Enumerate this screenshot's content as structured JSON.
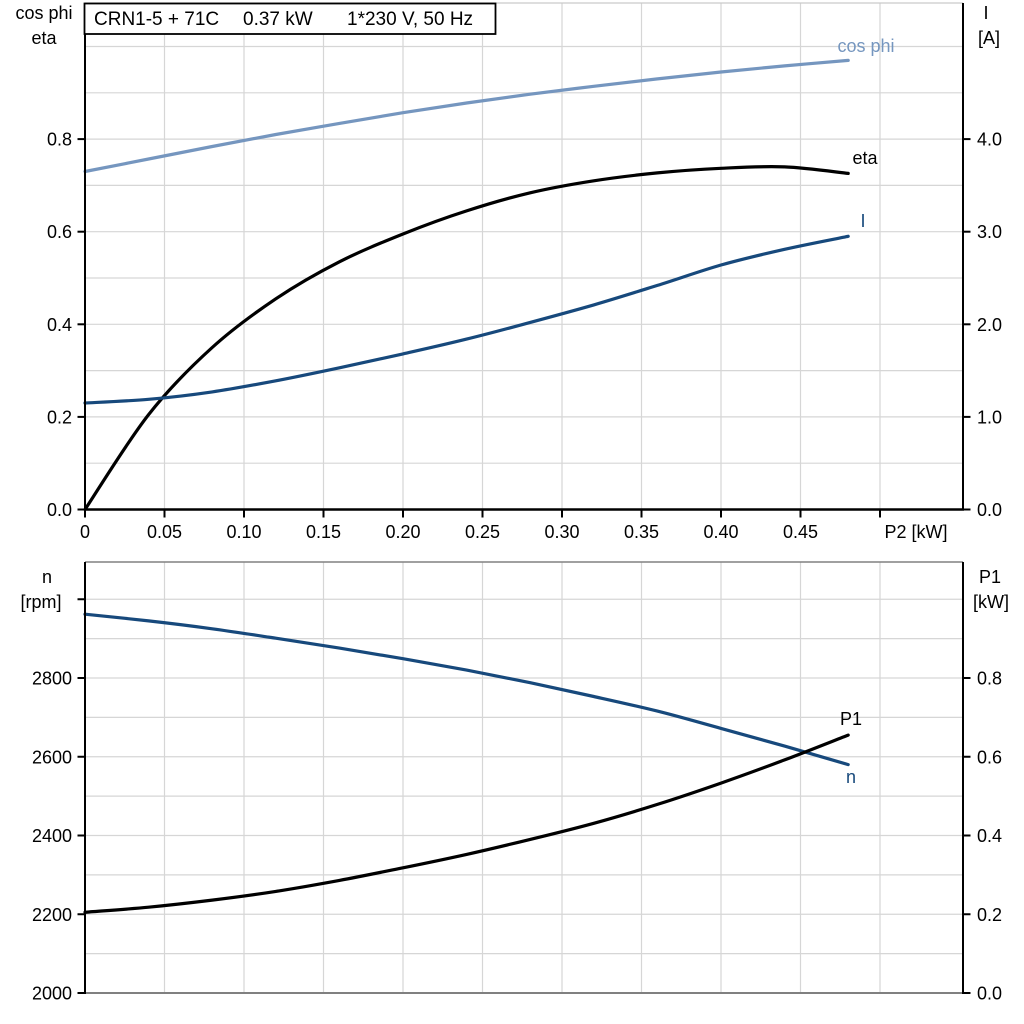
{
  "title_box": {
    "segments": [
      "CRN1-5 + 71C",
      "0.37 kW",
      "1*230 V, 50 Hz"
    ]
  },
  "colors": {
    "curve_dark_blue": "#17497c",
    "curve_light_blue": "#7596bf",
    "curve_black": "#000000",
    "gridline": "#d6d6d6",
    "frame_light": "#c9c9c9",
    "frame_dark": "#808080",
    "axis": "#000000",
    "background": "#ffffff"
  },
  "chart_data": [
    {
      "type": "line",
      "title": "CRN1-5 + 71C 0.37 kW 1*230 V, 50 Hz",
      "xlabel": "P2 [kW]",
      "grid": true,
      "x": [
        0,
        0.04,
        0.08,
        0.12,
        0.16,
        0.2,
        0.24,
        0.28,
        0.32,
        0.36,
        0.4,
        0.44,
        0.48
      ],
      "x_axis": {
        "ticks": [
          0,
          0.05,
          0.1,
          0.15,
          0.2,
          0.25,
          0.3,
          0.35,
          0.4,
          0.45,
          0.5
        ],
        "tick_labels": [
          "0",
          "0.05",
          "0.10",
          "0.15",
          "0.20",
          "0.25",
          "0.30",
          "0.35",
          "0.40",
          "0.45",
          ""
        ],
        "range": [
          0,
          0.552
        ]
      },
      "left_axis": {
        "header": [
          "cos phi",
          "eta"
        ],
        "ticks": [
          0.0,
          0.2,
          0.4,
          0.6,
          0.8
        ],
        "tick_labels": [
          "0.0",
          "0.2",
          "0.4",
          "0.6",
          "0.8"
        ],
        "minor_step": 0.1,
        "range": [
          0,
          1.094
        ]
      },
      "right_axis": {
        "header": [
          "I",
          "[A]"
        ],
        "ticks": [
          0.0,
          1.0,
          2.0,
          3.0,
          4.0
        ],
        "tick_labels": [
          "0.0",
          "1.0",
          "2.0",
          "3.0",
          "4.0"
        ],
        "range": [
          0,
          5.47
        ]
      },
      "series": [
        {
          "name": "cos phi",
          "axis": "left",
          "color": "#7596bf",
          "values": [
            0.73,
            0.757,
            0.784,
            0.81,
            0.834,
            0.857,
            0.878,
            0.897,
            0.914,
            0.93,
            0.945,
            0.958,
            0.97
          ]
        },
        {
          "name": "eta",
          "axis": "left",
          "color": "#000000",
          "values": [
            0.0,
            0.205,
            0.35,
            0.455,
            0.535,
            0.595,
            0.645,
            0.684,
            0.71,
            0.727,
            0.737,
            0.74,
            0.726
          ]
        },
        {
          "name": "I",
          "axis": "right",
          "color": "#17497c",
          "values": [
            1.15,
            1.19,
            1.27,
            1.39,
            1.53,
            1.68,
            1.84,
            2.02,
            2.21,
            2.42,
            2.64,
            2.81,
            2.95
          ]
        }
      ]
    },
    {
      "type": "line",
      "title": "",
      "xlabel": "",
      "grid": true,
      "x": [
        0,
        0.04,
        0.08,
        0.12,
        0.16,
        0.2,
        0.24,
        0.28,
        0.32,
        0.36,
        0.4,
        0.44,
        0.48
      ],
      "x_axis": {
        "ticks": [],
        "tick_labels": [],
        "range": [
          0,
          0.552
        ]
      },
      "left_axis": {
        "header": [
          "n",
          "[rpm]"
        ],
        "ticks": [
          2000,
          2200,
          2400,
          2600,
          2800,
          3000
        ],
        "tick_labels": [
          "2000",
          "2200",
          "2400",
          "2600",
          "2800",
          ""
        ],
        "minor_step": 100,
        "range": [
          2000,
          3095
        ]
      },
      "right_axis": {
        "header": [
          "P1",
          "[kW]"
        ],
        "ticks": [
          0.0,
          0.2,
          0.4,
          0.6,
          0.8
        ],
        "tick_labels": [
          "0.0",
          "0.2",
          "0.4",
          "0.6",
          "0.8"
        ],
        "range": [
          0,
          1.095
        ]
      },
      "series": [
        {
          "name": "n",
          "axis": "left",
          "color": "#17497c",
          "values": [
            2962,
            2945,
            2925,
            2901,
            2876,
            2849,
            2820,
            2788,
            2753,
            2716,
            2672,
            2627,
            2580
          ]
        },
        {
          "name": "P1",
          "axis": "right",
          "color": "#000000",
          "values": [
            0.205,
            0.218,
            0.236,
            0.258,
            0.286,
            0.318,
            0.352,
            0.39,
            0.431,
            0.479,
            0.533,
            0.592,
            0.655
          ]
        }
      ]
    }
  ]
}
